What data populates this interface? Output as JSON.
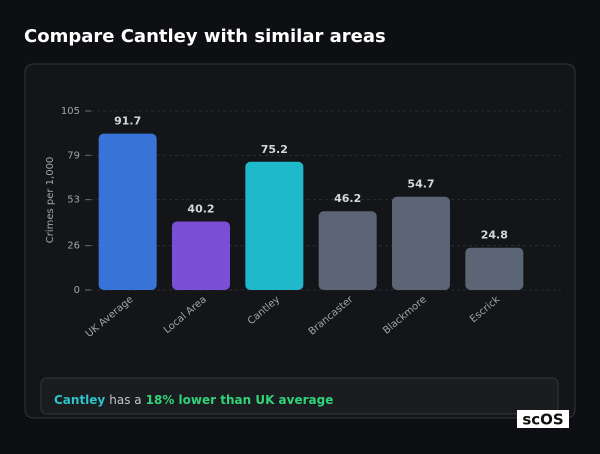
{
  "chart_data": {
    "type": "bar",
    "title": "Compare Cantley with similar areas",
    "ylabel": "Crimes per 1,000",
    "categories": [
      "UK Average",
      "Local Area",
      "Cantley",
      "Brancaster",
      "Blackmore",
      "Escrick"
    ],
    "values": [
      91.7,
      40.2,
      75.2,
      46.2,
      54.7,
      24.8
    ],
    "colors": [
      "#3874d8",
      "#7a4fd5",
      "#20b9cc",
      "#5b6575",
      "#5b6575",
      "#5b6575"
    ],
    "ylim": [
      0,
      105
    ],
    "yticks": [
      0,
      26,
      53,
      79,
      105
    ],
    "grid": true
  },
  "summary": {
    "place": "Cantley",
    "text": "has a",
    "highlight": "18% lower than UK average"
  },
  "logo": "scOS"
}
